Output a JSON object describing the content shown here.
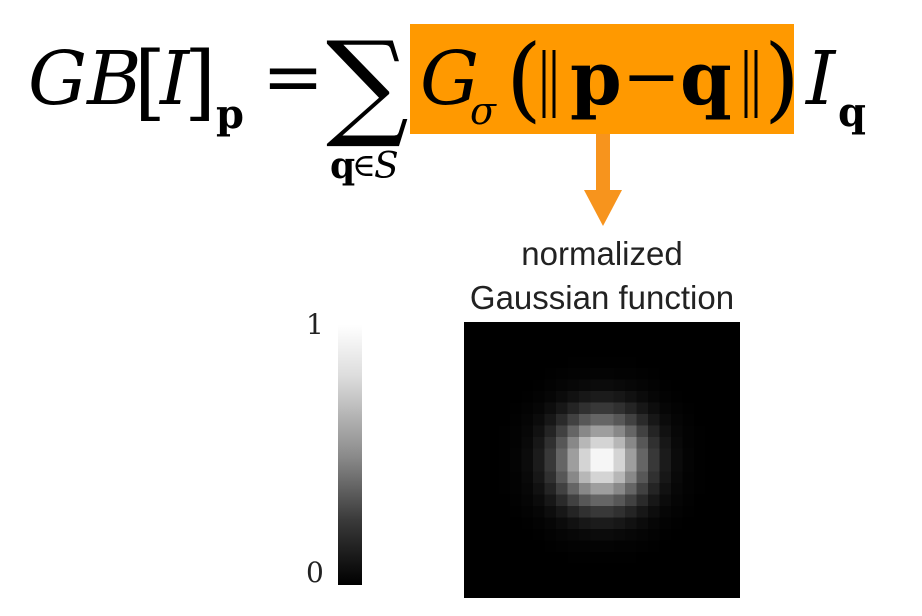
{
  "formula": {
    "lhs_name": "GB",
    "lhs_arg": "I",
    "lhs_subscript": "p",
    "equals": "=",
    "sum_index": "q",
    "sum_in": "∈",
    "sum_set": "S",
    "kernel_symbol": "G",
    "kernel_subscript": "σ",
    "norm_p": "p",
    "minus": "−",
    "norm_q": "q",
    "rhs_symbol": "I",
    "rhs_subscript": "q"
  },
  "caption": {
    "line1": "normalized",
    "line2": "Gaussian function"
  },
  "colorbar": {
    "max_label": "1",
    "min_label": "0"
  },
  "gaussian": {
    "grid_size": 24,
    "sigma_cells": 2.6
  },
  "colors": {
    "highlight": "#FF9900",
    "arrow": "#F7941D",
    "text": "#222222"
  }
}
